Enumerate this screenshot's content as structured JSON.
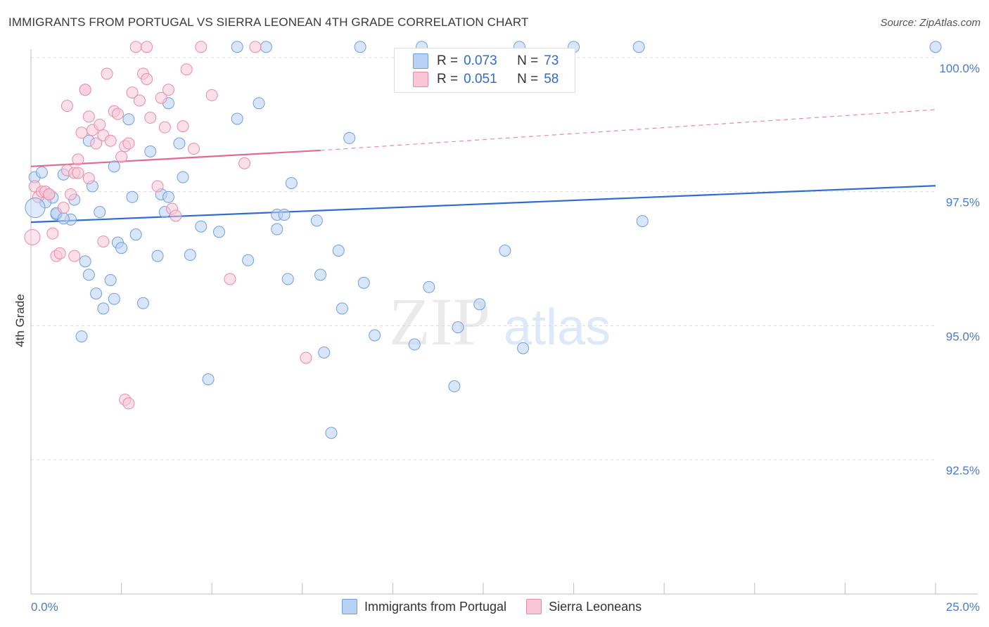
{
  "title": "IMMIGRANTS FROM PORTUGAL VS SIERRA LEONEAN 4TH GRADE CORRELATION CHART",
  "source": "Source: ZipAtlas.com",
  "watermark": {
    "zip": "ZIP",
    "atlas": "atlas"
  },
  "legend": {
    "r_label": "R =",
    "n_label": "N =",
    "rows": [
      {
        "r": "0.073",
        "n": "73",
        "color": "#b9d1f5",
        "border": "#6f9fe0"
      },
      {
        "r": "0.051",
        "n": "58",
        "color": "#f9c6d5",
        "border": "#e98aa8"
      }
    ]
  },
  "bottom_legend": [
    {
      "label": "Immigrants from Portugal",
      "color": "#b9d1f5",
      "border": "#6f9fe0"
    },
    {
      "label": "Sierra Leoneans",
      "color": "#f9c6d5",
      "border": "#e98aa8"
    }
  ],
  "chart_data": {
    "type": "scatter",
    "title": "IMMIGRANTS FROM PORTUGAL VS SIERRA LEONEAN 4TH GRADE CORRELATION CHART",
    "xlabel": "",
    "ylabel": "4th Grade",
    "xlim": [
      0,
      25
    ],
    "ylim": [
      90.0,
      100.5
    ],
    "x_ticks": [
      "0.0%",
      "25.0%"
    ],
    "y_ticks": [
      {
        "value": 100.0,
        "label": "100.0%"
      },
      {
        "value": 97.5,
        "label": "97.5%"
      },
      {
        "value": 95.0,
        "label": "95.0%"
      },
      {
        "value": 92.5,
        "label": "92.5%"
      }
    ],
    "grid": true,
    "series": [
      {
        "name": "Immigrants from Portugal",
        "color": "#6f9fe0",
        "fill": "#b9d1f5",
        "trend": {
          "x": [
            0,
            25
          ],
          "y": [
            96.93,
            97.61
          ]
        },
        "points": [
          [
            0.1,
            97.77
          ],
          [
            0.3,
            97.86
          ],
          [
            0.5,
            97.45
          ],
          [
            0.6,
            97.39
          ],
          [
            0.7,
            97.08
          ],
          [
            0.9,
            97.82
          ],
          [
            1.2,
            97.35
          ],
          [
            1.5,
            96.2
          ],
          [
            1.6,
            95.95
          ],
          [
            1.4,
            94.8
          ],
          [
            1.6,
            98.45
          ],
          [
            1.8,
            95.6
          ],
          [
            1.9,
            97.12
          ],
          [
            2.0,
            95.32
          ],
          [
            2.2,
            95.85
          ],
          [
            2.3,
            95.5
          ],
          [
            2.3,
            97.97
          ],
          [
            2.4,
            96.55
          ],
          [
            2.5,
            96.45
          ],
          [
            2.7,
            98.85
          ],
          [
            2.8,
            97.4
          ],
          [
            2.9,
            96.7
          ],
          [
            3.1,
            95.42
          ],
          [
            3.3,
            98.25
          ],
          [
            3.5,
            96.3
          ],
          [
            3.6,
            97.45
          ],
          [
            3.7,
            97.12
          ],
          [
            3.8,
            97.4
          ],
          [
            3.8,
            99.15
          ],
          [
            4.1,
            98.4
          ],
          [
            4.2,
            97.77
          ],
          [
            4.4,
            96.32
          ],
          [
            4.7,
            96.85
          ],
          [
            4.9,
            94.0
          ],
          [
            5.2,
            96.75
          ],
          [
            5.7,
            100.2
          ],
          [
            5.7,
            98.86
          ],
          [
            6.0,
            96.22
          ],
          [
            6.3,
            99.15
          ],
          [
            6.5,
            100.2
          ],
          [
            6.8,
            97.07
          ],
          [
            7.0,
            97.07
          ],
          [
            7.2,
            97.66
          ],
          [
            7.1,
            95.87
          ],
          [
            7.9,
            96.96
          ],
          [
            8.0,
            95.95
          ],
          [
            8.1,
            94.5
          ],
          [
            8.5,
            96.4
          ],
          [
            8.6,
            95.32
          ],
          [
            8.8,
            98.5
          ],
          [
            8.3,
            93.0
          ],
          [
            9.1,
            100.2
          ],
          [
            9.2,
            95.8
          ],
          [
            9.5,
            94.82
          ],
          [
            10.6,
            94.65
          ],
          [
            11.0,
            95.72
          ],
          [
            11.7,
            93.87
          ],
          [
            11.8,
            94.97
          ],
          [
            12.4,
            95.4
          ],
          [
            13.5,
            100.2
          ],
          [
            13.6,
            94.58
          ],
          [
            15.0,
            100.2
          ],
          [
            16.8,
            100.2
          ],
          [
            16.9,
            96.95
          ],
          [
            25.0,
            100.2
          ],
          [
            0.7,
            97.1
          ],
          [
            1.1,
            96.98
          ],
          [
            1.7,
            97.6
          ],
          [
            0.9,
            97.0
          ],
          [
            0.4,
            97.3
          ],
          [
            10.8,
            100.2
          ],
          [
            6.8,
            96.8
          ],
          [
            13.1,
            96.4
          ]
        ]
      },
      {
        "name": "Sierra Leoneans",
        "color": "#e98aa8",
        "fill": "#f9c6d5",
        "trend": {
          "x": [
            0,
            8.0
          ],
          "y": [
            97.97,
            98.27
          ],
          "dash_to": {
            "x": 25,
            "y": 99.03
          }
        },
        "points": [
          [
            0.1,
            97.6
          ],
          [
            0.2,
            97.4
          ],
          [
            0.3,
            97.5
          ],
          [
            0.4,
            97.5
          ],
          [
            0.5,
            97.45
          ],
          [
            0.6,
            96.72
          ],
          [
            0.7,
            96.3
          ],
          [
            0.8,
            96.35
          ],
          [
            0.9,
            97.2
          ],
          [
            1.0,
            97.9
          ],
          [
            1.1,
            97.45
          ],
          [
            1.2,
            97.85
          ],
          [
            1.3,
            98.1
          ],
          [
            1.4,
            98.6
          ],
          [
            1.5,
            99.4
          ],
          [
            1.6,
            98.9
          ],
          [
            1.7,
            98.65
          ],
          [
            1.8,
            98.4
          ],
          [
            1.9,
            98.75
          ],
          [
            2.0,
            98.55
          ],
          [
            2.1,
            99.7
          ],
          [
            2.2,
            98.45
          ],
          [
            2.3,
            99.0
          ],
          [
            2.4,
            98.95
          ],
          [
            2.5,
            98.15
          ],
          [
            2.6,
            98.35
          ],
          [
            2.7,
            98.4
          ],
          [
            2.8,
            99.35
          ],
          [
            2.9,
            100.2
          ],
          [
            3.0,
            99.2
          ],
          [
            3.1,
            99.7
          ],
          [
            3.2,
            99.6
          ],
          [
            3.3,
            98.88
          ],
          [
            3.5,
            97.6
          ],
          [
            3.6,
            99.25
          ],
          [
            3.7,
            98.7
          ],
          [
            3.8,
            99.4
          ],
          [
            3.9,
            97.18
          ],
          [
            4.0,
            97.05
          ],
          [
            4.2,
            98.72
          ],
          [
            4.3,
            99.78
          ],
          [
            4.5,
            98.3
          ],
          [
            4.7,
            100.2
          ],
          [
            5.0,
            99.3
          ],
          [
            5.5,
            95.87
          ],
          [
            5.9,
            98.03
          ],
          [
            6.2,
            100.2
          ],
          [
            7.6,
            94.4
          ],
          [
            2.6,
            93.62
          ],
          [
            2.7,
            93.55
          ],
          [
            1.2,
            96.3
          ],
          [
            1.3,
            97.85
          ],
          [
            0.5,
            97.45
          ],
          [
            1.6,
            97.75
          ],
          [
            2.0,
            96.57
          ],
          [
            1.5,
            99.4
          ],
          [
            3.2,
            100.2
          ],
          [
            1.0,
            99.1
          ]
        ]
      }
    ]
  }
}
